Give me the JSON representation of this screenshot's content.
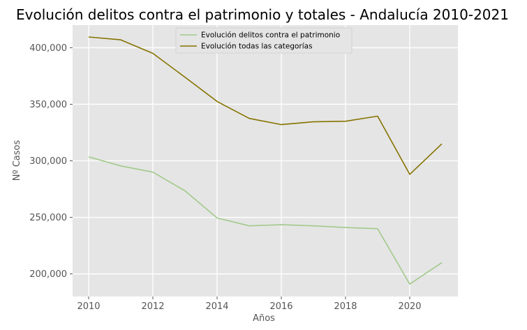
{
  "chart_data": {
    "type": "line",
    "title": "Evolución delitos contra el patrimonio y totales - Andalucía 2010-2021",
    "xlabel": "Años",
    "ylabel": "Nº Casos",
    "x": [
      2010,
      2011,
      2012,
      2013,
      2014,
      2015,
      2016,
      2017,
      2018,
      2019,
      2020,
      2021
    ],
    "xlim": [
      2009.5,
      2021.5
    ],
    "ylim": [
      180000,
      420000
    ],
    "xticks": [
      2010,
      2012,
      2014,
      2016,
      2018,
      2020
    ],
    "xtick_labels": [
      "2010",
      "2012",
      "2014",
      "2016",
      "2018",
      "2020"
    ],
    "yticks": [
      200000,
      250000,
      300000,
      350000,
      400000
    ],
    "ytick_labels": [
      "200,000",
      "250,000",
      "300,000",
      "350,000",
      "400,000"
    ],
    "grid": true,
    "legend": "top-center",
    "series": [
      {
        "name": "Evolución delitos contra el patrimonio",
        "color": "#a2c98b",
        "values": [
          303500,
          295500,
          290000,
          273500,
          249500,
          242500,
          243500,
          242500,
          241000,
          240000,
          191000,
          210000
        ]
      },
      {
        "name": "Evolución todas las categorías",
        "color": "#857300",
        "values": [
          409500,
          407000,
          395000,
          374000,
          352500,
          337500,
          332000,
          334500,
          335000,
          339500,
          288000,
          315000
        ]
      }
    ]
  }
}
